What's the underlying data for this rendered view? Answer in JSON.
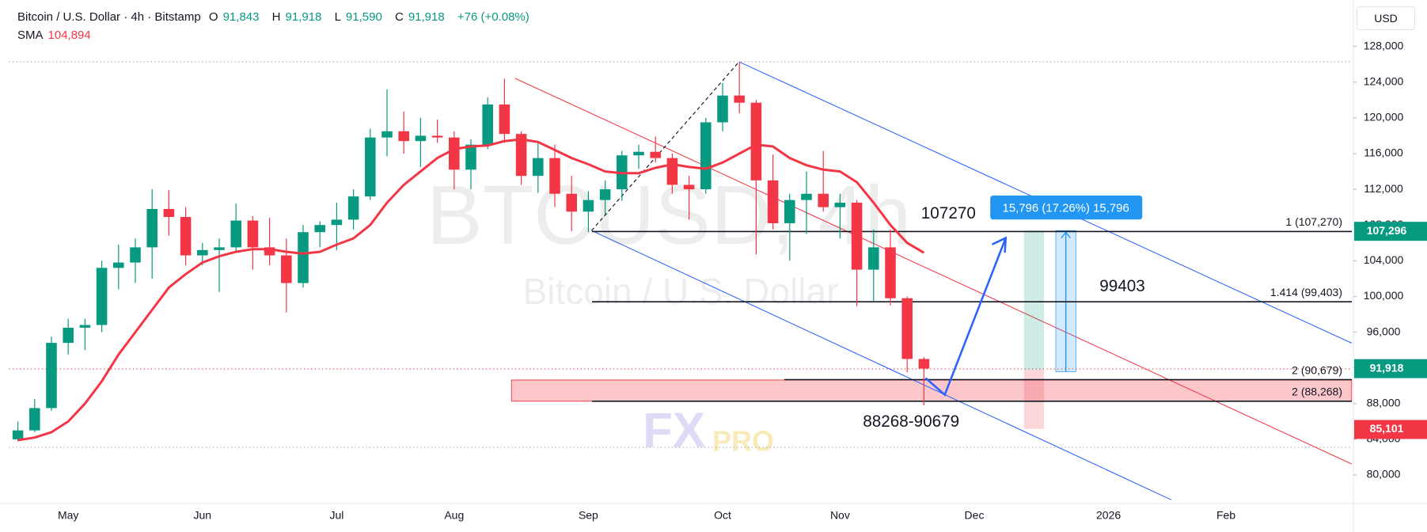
{
  "header": {
    "title": "Bitcoin / U.S. Dollar · 4h · Bitstamp",
    "ohlc": [
      [
        "O",
        "91,843"
      ],
      [
        "H",
        "91,918"
      ],
      [
        "L",
        "91,590"
      ],
      [
        "C",
        "91,918"
      ]
    ],
    "change": "+76 (+0.08%)",
    "indicator": {
      "name": "SMA",
      "value": "104,894"
    },
    "currency": "USD"
  },
  "chart_data": {
    "type": "candlestick",
    "categories": [
      null,
      null,
      null,
      "May",
      null,
      null,
      null,
      null,
      null,
      null,
      null,
      "Jun",
      null,
      null,
      null,
      null,
      null,
      null,
      null,
      "Jul",
      null,
      null,
      null,
      null,
      null,
      null,
      "Aug",
      null,
      null,
      null,
      null,
      null,
      null,
      null,
      "Sep",
      null,
      null,
      null,
      null,
      null,
      null,
      null,
      "Oct",
      null,
      null,
      null,
      null,
      null,
      null,
      "Nov",
      null,
      null,
      null,
      null,
      null,
      null,
      null,
      "Dec",
      null,
      null,
      null,
      null,
      null,
      null,
      null,
      "2026",
      null,
      null,
      null,
      null,
      null,
      null,
      "Feb",
      null,
      null,
      null,
      null,
      null,
      null,
      null
    ],
    "open": [
      84000,
      85000,
      87500,
      94800,
      96500,
      96800,
      103200,
      103800,
      105500,
      109800,
      108900,
      104600,
      105200,
      105500,
      108500,
      105500,
      104600,
      101500,
      107200,
      108000,
      108600,
      111200,
      117800,
      118500,
      117400,
      118000,
      117800,
      114200,
      117000,
      121500,
      118200,
      113500,
      115500,
      111500,
      109500,
      110800,
      112000,
      115800,
      116200,
      115500,
      112500,
      112000,
      119500,
      122500,
      121700,
      113000,
      108200,
      110800,
      111500,
      110000,
      110500,
      103000,
      105500,
      99800,
      93000,
      null,
      null,
      null,
      null,
      null,
      null,
      null,
      null,
      null,
      null,
      null,
      null,
      null,
      null,
      null,
      null,
      null,
      null,
      null,
      null,
      null,
      null,
      null,
      null,
      null
    ],
    "high": [
      86000,
      88500,
      95500,
      97500,
      97500,
      104000,
      105800,
      106500,
      112000,
      111900,
      110000,
      106000,
      106500,
      110400,
      109000,
      108800,
      106500,
      108000,
      108400,
      110500,
      112000,
      118800,
      123200,
      120700,
      120000,
      119800,
      118500,
      117600,
      122300,
      124400,
      118500,
      117400,
      117000,
      113500,
      111800,
      113000,
      116300,
      117000,
      117900,
      116000,
      113500,
      120000,
      123900,
      126200,
      122000,
      115900,
      111500,
      114000,
      116300,
      111500,
      110800,
      107500,
      107500,
      100000,
      93200,
      null,
      null,
      null,
      null,
      null,
      null,
      null,
      null,
      null,
      null,
      null,
      null,
      null,
      null,
      null,
      null,
      null,
      null,
      null,
      null,
      null,
      null,
      null,
      null,
      null
    ],
    "low": [
      83800,
      84800,
      87200,
      93500,
      94000,
      96000,
      100800,
      101500,
      102000,
      106800,
      103500,
      103500,
      100500,
      105000,
      103000,
      103500,
      98200,
      101000,
      105500,
      105200,
      107500,
      110800,
      115700,
      116000,
      114500,
      117200,
      112000,
      112000,
      116500,
      117200,
      112500,
      111600,
      110000,
      107300,
      107200,
      109200,
      110700,
      114300,
      115000,
      111500,
      108600,
      111500,
      118500,
      120500,
      104700,
      107500,
      104000,
      107000,
      109500,
      106500,
      98900,
      99500,
      99000,
      91500,
      87800,
      null,
      null,
      null,
      null,
      null,
      null,
      null,
      null,
      null,
      null,
      null,
      null,
      null,
      null,
      null,
      null,
      null,
      null,
      null,
      null,
      null,
      null,
      null,
      null,
      null
    ],
    "close": [
      85000,
      87500,
      94800,
      96500,
      96800,
      103200,
      103800,
      105500,
      109800,
      108900,
      104600,
      105200,
      105500,
      108500,
      105500,
      104600,
      101500,
      107200,
      108000,
      108600,
      111200,
      117800,
      118500,
      117400,
      118000,
      117800,
      114200,
      117000,
      121500,
      118200,
      113500,
      115500,
      111500,
      109500,
      110800,
      112000,
      115800,
      116200,
      115500,
      112500,
      112000,
      119500,
      122500,
      121700,
      113000,
      108200,
      110800,
      111500,
      110000,
      110500,
      103000,
      105500,
      99800,
      93000,
      91918,
      null,
      null,
      null,
      null,
      null,
      null,
      null,
      null,
      null,
      null,
      null,
      null,
      null,
      null,
      null,
      null,
      null,
      null,
      null,
      null,
      null,
      null,
      null,
      null,
      null
    ],
    "up_color": "#089981",
    "down_color": "#f23645",
    "overlays": [
      {
        "name": "SMA",
        "color": "#f23645",
        "values": [
          83900,
          84200,
          84800,
          86000,
          88000,
          90500,
          93500,
          96000,
          98500,
          101000,
          102500,
          103800,
          104500,
          105000,
          105300,
          105300,
          105000,
          104800,
          105000,
          105800,
          106500,
          108000,
          110500,
          112500,
          114000,
          115500,
          116500,
          116800,
          116900,
          117400,
          117600,
          117300,
          116400,
          115500,
          114800,
          114000,
          113800,
          113800,
          114400,
          114800,
          114500,
          114300,
          115000,
          116000,
          117000,
          116800,
          115500,
          114700,
          114200,
          114000,
          112800,
          110500,
          108000,
          106000,
          104894,
          null,
          null,
          null,
          null,
          null,
          null,
          null,
          null,
          null,
          null,
          null,
          null,
          null,
          null,
          null,
          null,
          null,
          null,
          null,
          null,
          null,
          null,
          null,
          null,
          null
        ]
      }
    ],
    "ylim": [
      76900,
      133200
    ],
    "yticks": [
      {
        "value": 80000,
        "label": "80,000"
      },
      {
        "value": 84000,
        "label": "84,000"
      },
      {
        "value": 88000,
        "label": "88,000"
      },
      {
        "value": 92000,
        "label": "92,000"
      },
      {
        "value": 96000,
        "label": "96,000"
      },
      {
        "value": 100000,
        "label": "100,000"
      },
      {
        "value": 104000,
        "label": "104,000"
      },
      {
        "value": 108000,
        "label": "108,000"
      },
      {
        "value": 112000,
        "label": "112,000"
      },
      {
        "value": 116000,
        "label": "116,000"
      },
      {
        "value": 120000,
        "label": "120,000"
      },
      {
        "value": 124000,
        "label": "124,000"
      },
      {
        "value": 128000,
        "label": "128,000"
      }
    ],
    "grid": false,
    "levels": [
      {
        "value": 107270,
        "label": "1 (107,270)"
      },
      {
        "value": 99403,
        "label": "1.414 (99,403)"
      },
      {
        "value": 90679,
        "label": "2 (90,679)"
      },
      {
        "value": 88268,
        "label": "2 (88,268)"
      }
    ],
    "price_badges": [
      {
        "value": 107296,
        "label": "107,296",
        "color": "#089981"
      },
      {
        "value": 91918,
        "label": "91,918",
        "color": "#089981"
      },
      {
        "value": 85101,
        "label": "85,101",
        "color": "#f23645"
      }
    ],
    "annotations": {
      "target_high": "107270",
      "target_mid": "99403",
      "support_zone": "88268-90679",
      "measure": "15,796 (17.26%) 15,796"
    },
    "watermark": {
      "symbol": "BTCUSD, 4h",
      "description": "Bitcoin / U.S. Dollar"
    },
    "logo": [
      "FX",
      "PRO"
    ]
  }
}
